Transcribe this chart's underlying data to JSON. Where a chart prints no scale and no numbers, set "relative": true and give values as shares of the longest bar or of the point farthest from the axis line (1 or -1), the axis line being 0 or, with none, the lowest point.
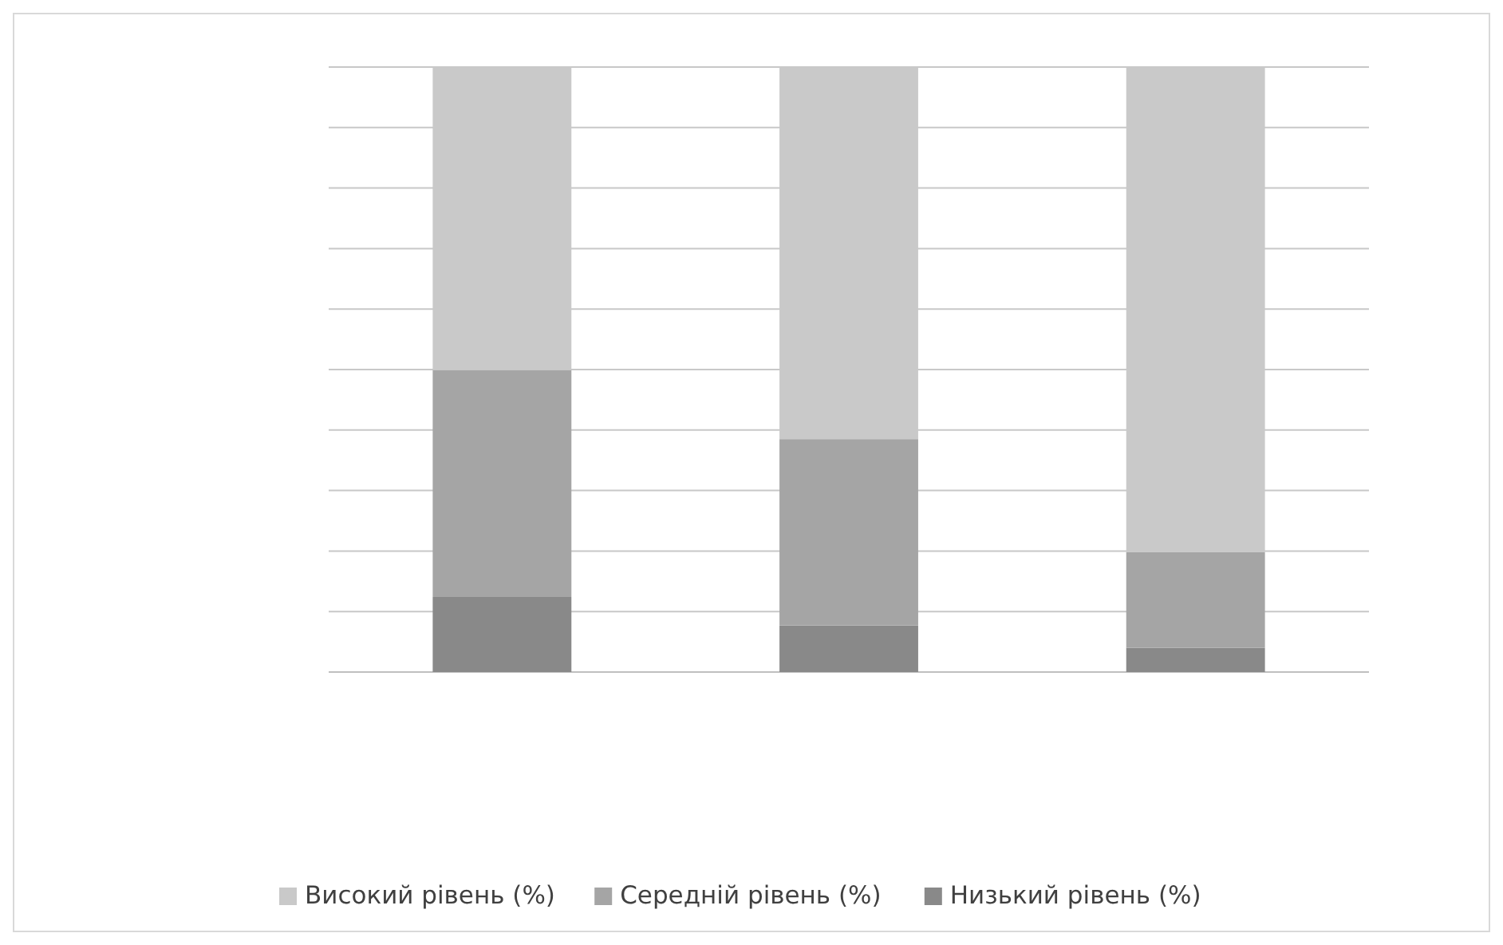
{
  "chart_data": {
    "type": "bar",
    "stacked": true,
    "relative": true,
    "grid": "y",
    "legend": "bottom",
    "categories": [
      null,
      null,
      null
    ],
    "series": [
      {
        "name": "Низький рівень (%)",
        "color": "#898989",
        "values": [
          0.124,
          0.077,
          0.04
        ]
      },
      {
        "name": "Середній рівень (%)",
        "color": "#a5a5a5",
        "values": [
          0.375,
          0.308,
          0.158
        ]
      },
      {
        "name": "Високий рівень (%)",
        "color": "#c9c9c9",
        "values": [
          0.501,
          0.615,
          0.802
        ]
      }
    ]
  }
}
